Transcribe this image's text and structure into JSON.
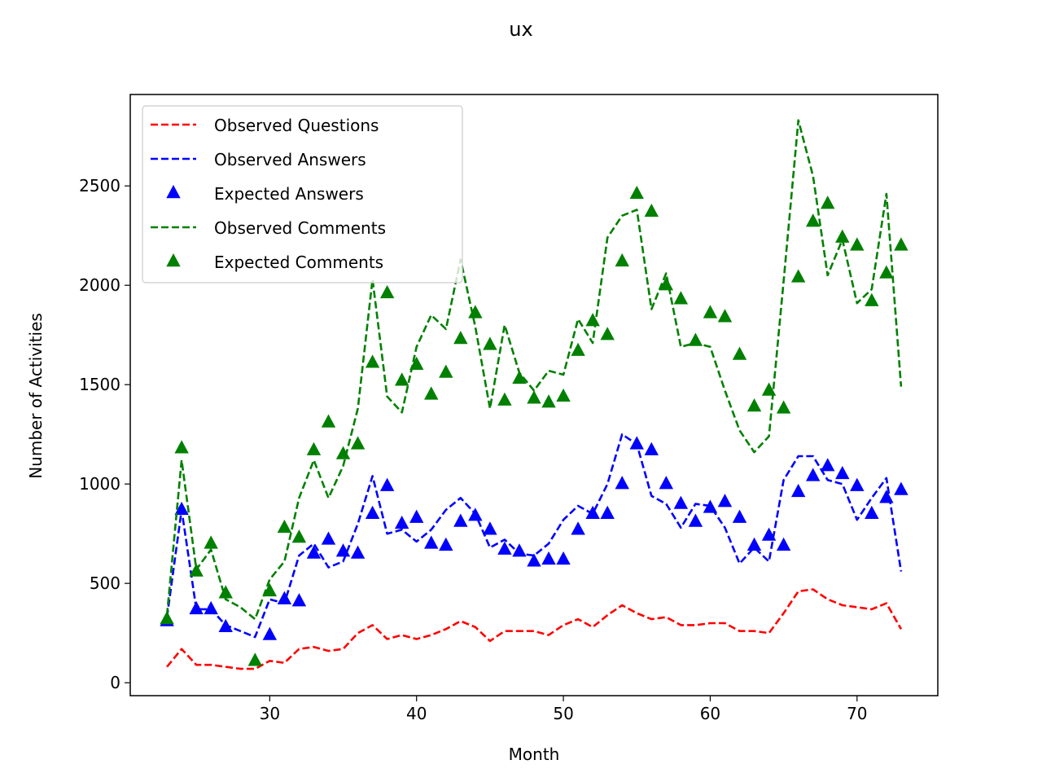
{
  "chart_data": {
    "type": "line",
    "title": "ux",
    "xlabel": "Month",
    "ylabel": "Number of Activities",
    "xlim": [
      20.5,
      75.5
    ],
    "ylim": [
      -65,
      2960
    ],
    "xticks": [
      30,
      40,
      50,
      60,
      70
    ],
    "yticks": [
      0,
      500,
      1000,
      1500,
      2000,
      2500
    ],
    "grid": false,
    "legend_position": "upper-left",
    "x": [
      23,
      24,
      25,
      26,
      27,
      28,
      29,
      30,
      31,
      32,
      33,
      34,
      35,
      36,
      37,
      38,
      39,
      40,
      41,
      42,
      43,
      44,
      45,
      46,
      47,
      48,
      49,
      50,
      51,
      52,
      53,
      54,
      55,
      56,
      57,
      58,
      59,
      60,
      61,
      62,
      63,
      64,
      65,
      66,
      67,
      68,
      69,
      70,
      71,
      72,
      73
    ],
    "series": [
      {
        "name": "Observed Questions",
        "style": "dashed-line",
        "color": "#ff0000",
        "values": [
          80,
          170,
          90,
          90,
          80,
          70,
          70,
          110,
          100,
          170,
          180,
          160,
          170,
          250,
          290,
          220,
          240,
          220,
          240,
          270,
          310,
          280,
          210,
          260,
          260,
          260,
          240,
          290,
          320,
          280,
          340,
          390,
          350,
          320,
          330,
          290,
          290,
          300,
          300,
          260,
          260,
          250,
          350,
          460,
          470,
          420,
          390,
          380,
          370,
          400,
          270
        ]
      },
      {
        "name": "Observed Answers",
        "style": "dashed-line",
        "color": "#0000ff",
        "values": [
          330,
          870,
          370,
          370,
          290,
          260,
          230,
          420,
          400,
          640,
          700,
          580,
          610,
          800,
          1040,
          750,
          770,
          710,
          770,
          870,
          930,
          850,
          680,
          720,
          650,
          640,
          700,
          820,
          890,
          850,
          1000,
          1250,
          1200,
          940,
          900,
          780,
          900,
          890,
          780,
          600,
          680,
          610,
          1020,
          1140,
          1140,
          1020,
          1000,
          820,
          930,
          1030,
          560
        ]
      },
      {
        "name": "Expected Answers",
        "style": "triangle-marker",
        "color": "#0000ff",
        "values": [
          310,
          870,
          370,
          370,
          280,
          null,
          null,
          240,
          420,
          410,
          650,
          720,
          660,
          650,
          850,
          990,
          800,
          830,
          700,
          690,
          810,
          840,
          770,
          670,
          660,
          610,
          620,
          620,
          770,
          850,
          850,
          1000,
          1200,
          1170,
          1000,
          900,
          810,
          880,
          910,
          830,
          690,
          740,
          690,
          960,
          1040,
          1090,
          1050,
          990,
          850,
          930,
          970
        ]
      },
      {
        "name": "Observed Comments",
        "style": "dashed-line",
        "color": "#008000",
        "values": [
          340,
          1120,
          570,
          670,
          420,
          380,
          320,
          520,
          610,
          930,
          1120,
          930,
          1090,
          1380,
          2030,
          1440,
          1360,
          1690,
          1850,
          1780,
          2130,
          1790,
          1380,
          1800,
          1560,
          1470,
          1570,
          1550,
          1830,
          1710,
          2240,
          2350,
          2380,
          1880,
          2060,
          1690,
          1710,
          1690,
          1470,
          1270,
          1160,
          1240,
          2020,
          2830,
          2550,
          2050,
          2230,
          1910,
          1980,
          2460,
          1490
        ]
      },
      {
        "name": "Expected Comments",
        "style": "triangle-marker",
        "color": "#008000",
        "values": [
          320,
          1180,
          560,
          700,
          450,
          null,
          110,
          460,
          780,
          730,
          1170,
          1310,
          1150,
          1200,
          1610,
          1960,
          1520,
          1600,
          1450,
          1560,
          1730,
          1860,
          1700,
          1420,
          1530,
          1430,
          1410,
          1440,
          1670,
          1820,
          1750,
          2120,
          2460,
          2370,
          2000,
          1930,
          1720,
          1860,
          1840,
          1650,
          1390,
          1470,
          1380,
          2040,
          2320,
          2410,
          2240,
          2200,
          1920,
          2060,
          2200
        ]
      }
    ]
  }
}
